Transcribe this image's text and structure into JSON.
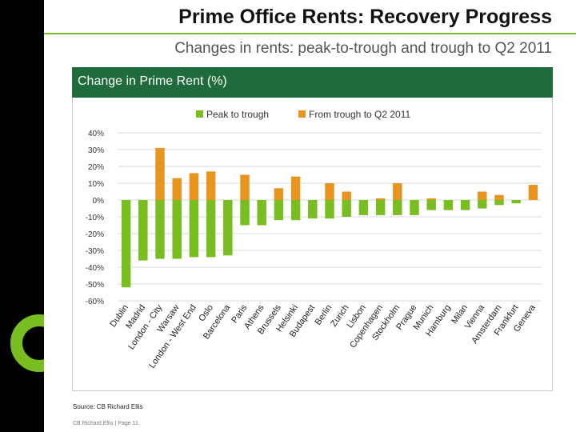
{
  "slide": {
    "title": "Prime Office Rents: Recovery Progress",
    "subtitle": "Changes in rents: peak-to-trough and trough to Q2 2011",
    "panel_title": "Change in Prime Rent (%)",
    "source": "Source: CB Richard Ellis",
    "footer": "CB Richard Ellis | Page 11"
  },
  "colors": {
    "green": "#78be20",
    "orange": "#e8951f",
    "header": "#1f6b3c"
  },
  "chart_data": {
    "type": "bar",
    "title": "Change in Prime Rent (%)",
    "xlabel": "",
    "ylabel": "",
    "ylim": [
      -60,
      40
    ],
    "yticks": [
      40,
      30,
      20,
      10,
      0,
      -10,
      -20,
      -30,
      -40,
      -50,
      -60
    ],
    "ytick_labels": [
      "40%",
      "30%",
      "20%",
      "10%",
      "0%",
      "-10%",
      "-20%",
      "-30%",
      "-40%",
      "-50%",
      "-60%"
    ],
    "grid": true,
    "legend_position": "top",
    "categories": [
      "Dublin",
      "Madrid",
      "London - City",
      "Warsaw",
      "London - West End",
      "Oslo",
      "Barcelona",
      "Paris",
      "Athens",
      "Brussels",
      "Helsinki",
      "Budapest",
      "Berlin",
      "Zurich",
      "Lisbon",
      "Copenhagen",
      "Stockholm",
      "Prague",
      "Munich",
      "Hamburg",
      "Milan",
      "Vienna",
      "Amsterdam",
      "Frankfurt",
      "Geneva"
    ],
    "series": [
      {
        "name": "Peak to trough",
        "color": "#78be20",
        "values": [
          -52,
          -36,
          -35,
          -35,
          -34,
          -34,
          -33,
          -15,
          -15,
          -12,
          -12,
          -11,
          -11,
          -10,
          -9,
          -9,
          -9,
          -9,
          -6,
          -6,
          -6,
          -5,
          -3,
          -2,
          0
        ]
      },
      {
        "name": "From  trough to Q2 2011",
        "color": "#e8951f",
        "values": [
          0,
          0,
          31,
          13,
          16,
          17,
          0,
          15,
          0,
          7,
          14,
          0,
          10,
          5,
          0,
          1,
          10,
          0,
          1,
          0,
          0,
          5,
          3,
          0,
          9
        ]
      }
    ]
  }
}
